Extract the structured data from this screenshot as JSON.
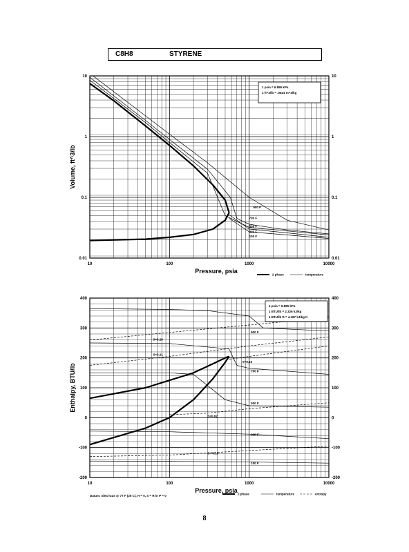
{
  "header": {
    "formula": "C8H8",
    "name": "STYRENE"
  },
  "page_number": "8",
  "footer_note": "Datum: Ideal Gas @ 77 F (25 C), H = 0, S = R ln P = 0",
  "chart_data": [
    {
      "type": "line",
      "xscale": "log",
      "yscale": "log",
      "xlim": [
        10,
        10000
      ],
      "ylim": [
        0.01,
        10
      ],
      "xlabel": "Pressure, psia",
      "ylabel": "Volume, ft^3/lb",
      "x_ticks": [
        "10",
        "100",
        "1000",
        "10000"
      ],
      "y_ticks": [
        "10",
        "1",
        "0.1",
        "0.01"
      ],
      "conversion_notes": [
        "1 psia = 6.895 kPa",
        "1 ft^3/lb = .0624 m^3/kg"
      ],
      "legend": [
        {
          "label": "2 phase",
          "style": "thick"
        },
        {
          "label": "temperature",
          "style": "thin"
        }
      ],
      "series": [
        {
          "kind": "2 phase",
          "x": [
            10,
            20,
            50,
            100,
            200,
            350,
            500,
            560
          ],
          "y": [
            7.5,
            3.9,
            1.5,
            0.72,
            0.33,
            0.16,
            0.09,
            0.056
          ]
        },
        {
          "kind": "2 phase",
          "x": [
            10,
            50,
            100,
            200,
            350,
            500,
            560
          ],
          "y": [
            0.0195,
            0.0205,
            0.022,
            0.0245,
            0.03,
            0.042,
            0.056
          ]
        },
        {
          "name": "900 F",
          "x": [
            10,
            50,
            100,
            300,
            1000,
            3000,
            10000
          ],
          "y": [
            11,
            2.2,
            1.1,
            0.37,
            0.1,
            0.042,
            0.029
          ]
        },
        {
          "name": "700 F",
          "x": [
            10,
            50,
            100,
            300,
            580,
            700,
            1000,
            3000,
            10000
          ],
          "y": [
            9.5,
            1.85,
            0.9,
            0.29,
            0.1,
            0.045,
            0.036,
            0.029,
            0.025
          ]
        },
        {
          "name": "500 F",
          "x": [
            10,
            50,
            100,
            300,
            500,
            1000,
            3000,
            10000
          ],
          "y": [
            8.5,
            1.7,
            0.8,
            0.25,
            0.05,
            0.032,
            0.028,
            0.024
          ]
        },
        {
          "name": "300 F",
          "x": [
            560,
            1000,
            3000,
            10000
          ],
          "y": [
            0.052,
            0.03,
            0.026,
            0.022
          ]
        },
        {
          "name": "100 F",
          "x": [
            560,
            1000,
            3000,
            10000
          ],
          "y": [
            0.045,
            0.027,
            0.024,
            0.021
          ]
        }
      ],
      "temperature_labels": [
        "900 F",
        "700 F",
        "500 F",
        "300 F",
        "100 F"
      ]
    },
    {
      "type": "line",
      "xscale": "log",
      "xlim": [
        10,
        10000
      ],
      "ylim": [
        -200,
        400
      ],
      "xlabel": "Pressure, psia",
      "ylabel": "Enthalpy, BTU/lb",
      "x_ticks": [
        "10",
        "100",
        "1000",
        "10000"
      ],
      "y_ticks": [
        "400",
        "300",
        "200",
        "100",
        "0",
        "-100",
        "-200"
      ],
      "conversion_notes": [
        "1 psia = 6.895 kPa",
        "1 BTU/lb = 2.326 kJ/kg",
        "1 BTU/lb R = 4.187 kJ/kg K"
      ],
      "legend": [
        {
          "label": "2 phase",
          "style": "thick"
        },
        {
          "label": "temperature",
          "style": "thin"
        },
        {
          "label": "entropy",
          "style": "dashed"
        }
      ],
      "series": [
        {
          "kind": "2 phase",
          "x": [
            10,
            50,
            100,
            200,
            350,
            500,
            560
          ],
          "y": [
            65,
            100,
            125,
            150,
            180,
            200,
            205
          ]
        },
        {
          "kind": "2 phase",
          "x": [
            10,
            50,
            100,
            200,
            350,
            500,
            560
          ],
          "y": [
            -90,
            -35,
            0,
            60,
            130,
            185,
            205
          ]
        },
        {
          "name": "900 F",
          "x": [
            10,
            100,
            300,
            1000,
            1500,
            10000
          ],
          "y": [
            365,
            362,
            358,
            340,
            300,
            290
          ]
        },
        {
          "name": "700 F",
          "x": [
            10,
            100,
            560,
            700,
            1000,
            10000
          ],
          "y": [
            250,
            248,
            230,
            175,
            165,
            145
          ]
        },
        {
          "name": "500 F",
          "x": [
            10,
            100,
            200,
            500,
            1000,
            10000
          ],
          "y": [
            150,
            150,
            145,
            60,
            40,
            35
          ]
        },
        {
          "name": "300 F",
          "x": [
            10,
            100,
            1000,
            10000
          ],
          "y": [
            -45,
            -47,
            -55,
            -70
          ]
        },
        {
          "name": "100 F",
          "x": [
            10,
            100,
            1000,
            10000
          ],
          "y": [
            -145,
            -146,
            -148,
            -152
          ]
        },
        {
          "name": "S=0.29",
          "style": "dashed",
          "x": [
            10,
            100,
            1000,
            10000
          ],
          "y": [
            260,
            285,
            310,
            335
          ]
        },
        {
          "name": "S=0.21",
          "style": "dashed",
          "x": [
            10,
            100,
            1000,
            10000
          ],
          "y": [
            175,
            205,
            240,
            270
          ]
        },
        {
          "name": "S=0.10",
          "style": "dashed",
          "x": [
            560,
            1000,
            10000
          ],
          "y": [
            195,
            205,
            240
          ]
        },
        {
          "name": "S=0.02",
          "style": "dashed",
          "x": [
            100,
            300,
            1000,
            10000
          ],
          "y": [
            10,
            15,
            30,
            50
          ]
        },
        {
          "name": "S=-0.15",
          "style": "dashed",
          "x": [
            10,
            100,
            1000,
            10000
          ],
          "y": [
            -130,
            -125,
            -110,
            -95
          ]
        }
      ],
      "temperature_labels": [
        "900 F",
        "700 F",
        "500 F",
        "300 F",
        "100 F"
      ],
      "entropy_labels": [
        "S=0.29",
        "S=0.21",
        "S=0.10",
        "S=0.02",
        "S=-0.15"
      ]
    }
  ]
}
